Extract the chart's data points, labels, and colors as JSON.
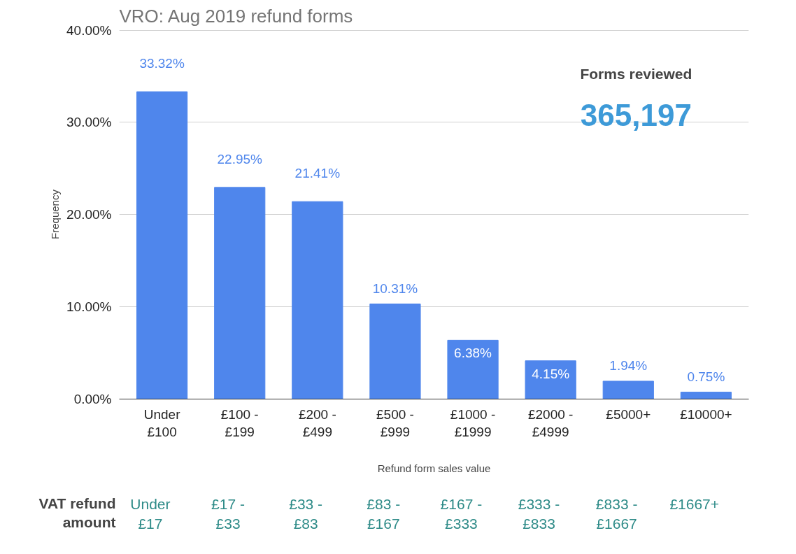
{
  "chart_data": {
    "type": "bar",
    "title": "VRO: Aug 2019 refund forms",
    "xlabel": "Refund form sales value",
    "ylabel": "Frequency",
    "categories": [
      "Under\n£100",
      "£100 -\n£199",
      "£200 -\n£499",
      "£500 -\n£999",
      "£1000 -\n£1999",
      "£2000 -\n£4999",
      "£5000+",
      "£10000+"
    ],
    "values": [
      33.32,
      22.95,
      21.41,
      10.31,
      6.38,
      4.15,
      1.94,
      0.75
    ],
    "value_labels": [
      "33.32%",
      "22.95%",
      "21.41%",
      "10.31%",
      "6.38%",
      "4.15%",
      "1.94%",
      "0.75%"
    ],
    "color": "#4f86ec",
    "ylim": [
      0,
      40
    ],
    "yticks": [
      {
        "value": 0,
        "label": "0.00%"
      },
      {
        "value": 10,
        "label": "10.00%"
      },
      {
        "value": 20,
        "label": "20.00%"
      },
      {
        "value": 30,
        "label": "30.00%"
      },
      {
        "value": 40,
        "label": "40.00%"
      }
    ],
    "grid": "y",
    "annotations": [
      "Forms reviewed",
      "365,197",
      "VAT refund\namount",
      "Under\n£17",
      "£17 -\n£33",
      "£33 -\n£83",
      "£83 -\n£167",
      "£167 -\n£333",
      "£333 -\n£833",
      "£833 -\n£1667",
      "£1667+"
    ]
  }
}
